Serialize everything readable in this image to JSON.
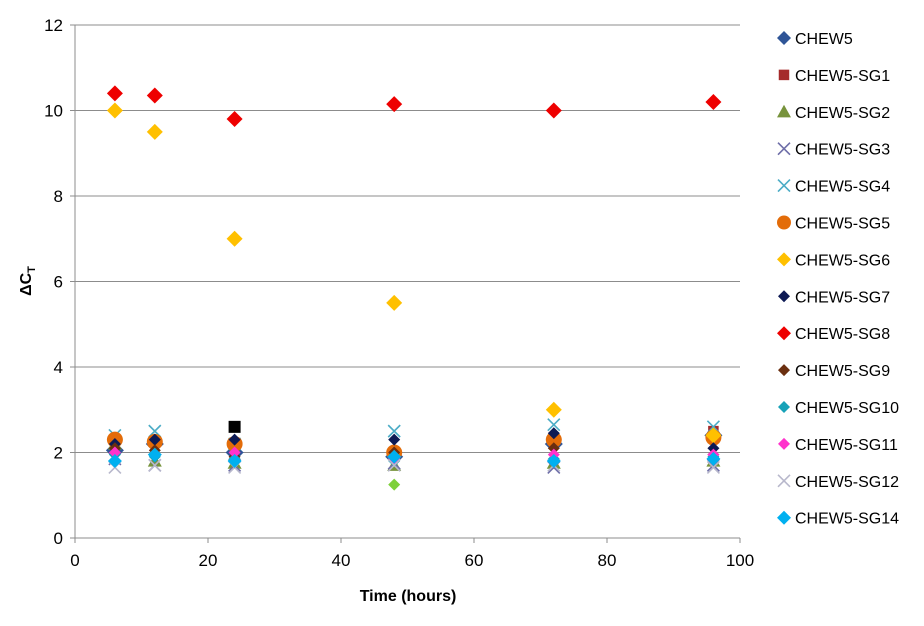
{
  "chart_data": {
    "type": "scatter",
    "xlabel": "Time (hours)",
    "ylabel_main": "ΔC",
    "ylabel_sub": "T",
    "xlim": [
      0,
      100
    ],
    "ylim": [
      0,
      12
    ],
    "xticks": [
      0,
      20,
      40,
      60,
      80,
      100
    ],
    "yticks": [
      0,
      2,
      4,
      6,
      8,
      10,
      12
    ],
    "grid": "horizontal",
    "legend": "right",
    "series": [
      {
        "name": "CHEW5",
        "color": "#2F5597",
        "marker": "diamond",
        "size": 9,
        "x": [
          6,
          12,
          24,
          48,
          72,
          96
        ],
        "y": [
          2.05,
          2.2,
          2.0,
          1.9,
          2.2,
          2.4
        ]
      },
      {
        "name": "CHEW5-SG1",
        "color": "#A52A2A",
        "marker": "square",
        "size": 7,
        "x": [
          6,
          12,
          24,
          48,
          72,
          96
        ],
        "y": [
          2.3,
          2.25,
          2.2,
          2.0,
          2.35,
          2.5
        ]
      },
      {
        "name": "CHEW5-SG2",
        "color": "#77933C",
        "marker": "triangle",
        "size": 7,
        "x": [
          6,
          12,
          24,
          48,
          72,
          96
        ],
        "y": [
          2.2,
          1.8,
          1.75,
          1.7,
          1.75,
          1.8
        ]
      },
      {
        "name": "CHEW5-SG3",
        "color": "#6E6EA8",
        "marker": "x",
        "size": 6,
        "x": [
          6,
          12,
          24,
          48,
          72,
          96
        ],
        "y": [
          1.85,
          1.7,
          1.7,
          1.75,
          1.65,
          1.7
        ]
      },
      {
        "name": "CHEW5-SG4",
        "color": "#4BACC6",
        "marker": "x",
        "size": 6,
        "x": [
          6,
          12,
          24,
          48,
          72,
          96
        ],
        "y": [
          2.4,
          2.5,
          2.2,
          2.5,
          2.65,
          2.6
        ]
      },
      {
        "name": "CHEW5-SG5",
        "color": "#E36C09",
        "marker": "circle",
        "size": 8,
        "x": [
          6,
          12,
          24,
          48,
          72,
          96
        ],
        "y": [
          2.3,
          2.25,
          2.2,
          2.0,
          2.3,
          2.35
        ]
      },
      {
        "name": "CHEW5-SG6",
        "color": "#FFC000",
        "marker": "diamond",
        "size": 8,
        "x": [
          6,
          12,
          24,
          48,
          72,
          96
        ],
        "y": [
          10.0,
          9.5,
          7.0,
          5.5,
          3.0,
          2.4
        ]
      },
      {
        "name": "CHEW5-SG7",
        "color": "#0D1A54",
        "marker": "diamond",
        "size": 6,
        "x": [
          6,
          12,
          24,
          48,
          72,
          96
        ],
        "y": [
          2.2,
          2.3,
          2.3,
          2.3,
          2.45,
          2.1
        ]
      },
      {
        "name": "CHEW5-SG8",
        "color": "#EE0000",
        "marker": "diamond",
        "size": 8,
        "x": [
          6,
          12,
          24,
          48,
          72,
          96
        ],
        "y": [
          10.4,
          10.35,
          9.8,
          10.15,
          10.0,
          10.2
        ]
      },
      {
        "name": "CHEW5-SG9",
        "color": "#6B2F10",
        "marker": "diamond",
        "size": 6,
        "x": [
          6,
          12,
          24,
          48,
          72,
          96
        ],
        "y": [
          2.1,
          2.05,
          1.9,
          2.0,
          2.1,
          1.95
        ]
      },
      {
        "name": "CHEW5-SG10",
        "color": "#17A2B8",
        "marker": "diamond",
        "size": 6,
        "x": [
          6,
          12,
          24,
          48,
          72,
          96
        ],
        "y": [
          1.95,
          1.9,
          1.85,
          1.8,
          1.85,
          1.9
        ]
      },
      {
        "name": "CHEW5-SG11",
        "color": "#FF33CC",
        "marker": "diamond",
        "size": 6,
        "x": [
          6,
          12,
          24,
          48,
          72,
          96
        ],
        "y": [
          2.0,
          1.95,
          2.0,
          1.85,
          1.95,
          1.95
        ]
      },
      {
        "name": "CHEW5-SG12",
        "color": "#B8B8CC",
        "marker": "x",
        "size": 6,
        "x": [
          6,
          12,
          24,
          48,
          72,
          96
        ],
        "y": [
          1.65,
          1.7,
          1.65,
          1.7,
          1.7,
          1.65
        ]
      },
      {
        "name": "CHEW5-SG14",
        "color": "#00B0F0",
        "marker": "diamond",
        "size": 7,
        "x": [
          6,
          12,
          24,
          48,
          72,
          96
        ],
        "y": [
          1.8,
          1.95,
          1.8,
          1.9,
          1.8,
          1.85
        ]
      },
      {
        "name": "",
        "color": "#000000",
        "marker": "square",
        "size": 8,
        "x": [
          24
        ],
        "y": [
          2.6
        ]
      },
      {
        "name": "",
        "color": "#7ED03A",
        "marker": "diamond",
        "size": 6,
        "x": [
          48
        ],
        "y": [
          1.25
        ]
      }
    ]
  }
}
